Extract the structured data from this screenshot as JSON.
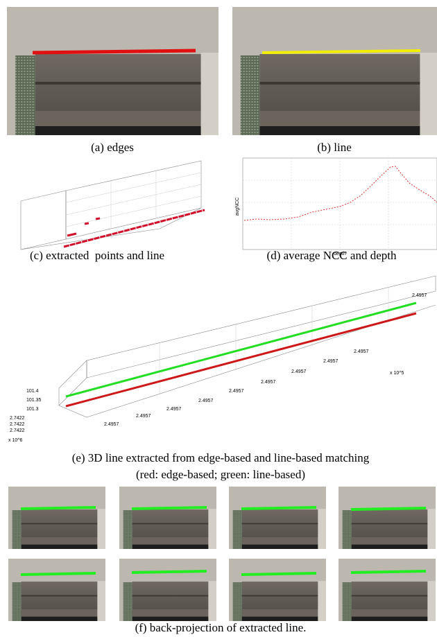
{
  "panels": {
    "a": {
      "caption": "(a) edges"
    },
    "b": {
      "caption": "(b) line"
    },
    "c": {
      "caption": "(c) extracted  points and line"
    },
    "d": {
      "caption": "(d) average NCC and depth",
      "y_label": "avgNCC",
      "x_label": "depth"
    },
    "e": {
      "caption": "(e) 3D line extracted from edge-based and line-based matching",
      "subcaption": "(red: edge-based; green: line-based)",
      "x_tick_labels": [
        "2.4957",
        "2.4957",
        "2.4957",
        "2.4957",
        "2.4957",
        "2.4957",
        "2.4957",
        "2.4957",
        "2.4957",
        "2.4957"
      ],
      "x_scale": "x 10^5",
      "z_tick_labels": [
        "101.4",
        "101.35",
        "101.3"
      ],
      "y_tick_labels": [
        "2.7422",
        "2.7422",
        "2.7422"
      ],
      "y_scale": "x 10^6"
    },
    "f": {
      "caption": "(f) back-projection of extracted line."
    }
  }
}
